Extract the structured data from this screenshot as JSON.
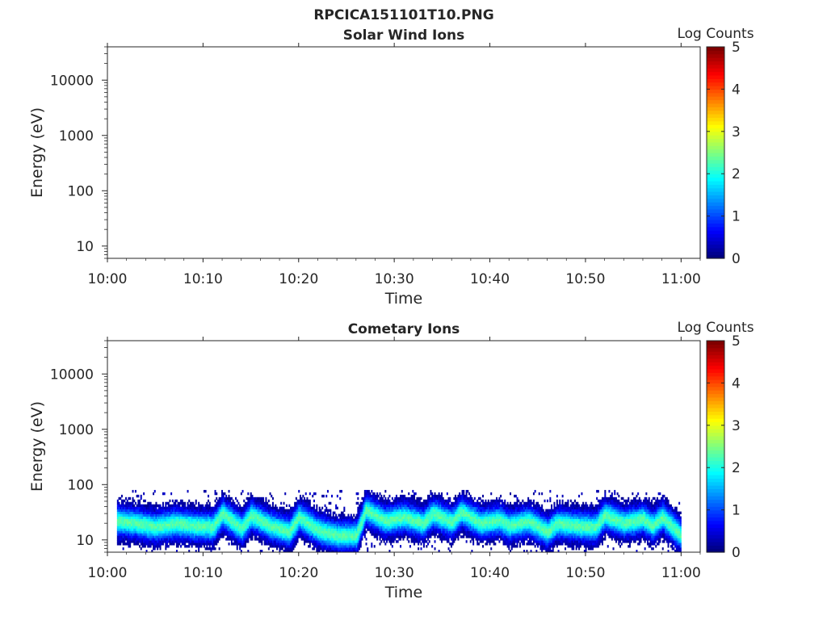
{
  "figure": {
    "title": "RPCICA151101T10.PNG"
  },
  "colormap": {
    "stops": [
      "#00007f",
      "#0000ff",
      "#007fff",
      "#00ffff",
      "#7fff7f",
      "#ffff00",
      "#ff7f00",
      "#ff0000",
      "#7f0000"
    ]
  },
  "chart_data": [
    {
      "type": "heatmap",
      "title": "Solar Wind Ions",
      "xlabel": "Time",
      "ylabel": "Energy (eV)",
      "x_ticks": [
        "10:00",
        "10:10",
        "10:20",
        "10:30",
        "10:40",
        "10:50",
        "11:00"
      ],
      "xlim": [
        "10:00",
        "11:02"
      ],
      "y_scale": "log",
      "y_ticks": [
        10,
        100,
        1000,
        10000
      ],
      "ylim": [
        6,
        40000
      ],
      "colorbar": {
        "label": "Log Counts",
        "ticks": [
          0,
          1,
          2,
          3,
          4,
          5
        ],
        "range": [
          0,
          5
        ]
      },
      "cells": []
    },
    {
      "type": "heatmap",
      "title": "Cometary Ions",
      "xlabel": "Time",
      "ylabel": "Energy (eV)",
      "x_ticks": [
        "10:00",
        "10:10",
        "10:20",
        "10:30",
        "10:40",
        "10:50",
        "11:00"
      ],
      "xlim": [
        "10:00",
        "11:02"
      ],
      "y_scale": "log",
      "y_ticks": [
        10,
        100,
        1000,
        10000
      ],
      "ylim": [
        6,
        40000
      ],
      "colorbar": {
        "label": "Log Counts",
        "ticks": [
          0,
          1,
          2,
          3,
          4,
          5
        ],
        "range": [
          0,
          5
        ]
      },
      "data_extent": {
        "start": "10:01",
        "end": "11:00",
        "energy_range_ev": [
          6,
          80
        ]
      },
      "band_center_ev": [
        [
          "10:01",
          22
        ],
        [
          "10:03",
          20
        ],
        [
          "10:05",
          17
        ],
        [
          "10:07",
          20
        ],
        [
          "10:09",
          18
        ],
        [
          "10:11",
          17
        ],
        [
          "10:12",
          30
        ],
        [
          "10:14",
          16
        ],
        [
          "10:15",
          28
        ],
        [
          "10:17",
          18
        ],
        [
          "10:19",
          14
        ],
        [
          "10:20",
          26
        ],
        [
          "10:22",
          15
        ],
        [
          "10:24",
          12
        ],
        [
          "10:26",
          12
        ],
        [
          "10:27",
          35
        ],
        [
          "10:29",
          22
        ],
        [
          "10:31",
          26
        ],
        [
          "10:33",
          20
        ],
        [
          "10:34",
          30
        ],
        [
          "10:36",
          21
        ],
        [
          "10:37",
          32
        ],
        [
          "10:39",
          20
        ],
        [
          "10:41",
          23
        ],
        [
          "10:42",
          18
        ],
        [
          "10:44",
          22
        ],
        [
          "10:46",
          14
        ],
        [
          "10:47",
          20
        ],
        [
          "10:49",
          18
        ],
        [
          "10:51",
          17
        ],
        [
          "10:52",
          28
        ],
        [
          "10:54",
          20
        ],
        [
          "10:56",
          24
        ],
        [
          "10:57",
          18
        ],
        [
          "10:58",
          26
        ],
        [
          "11:00",
          12
        ]
      ],
      "peak_log_counts": 2.3
    }
  ]
}
